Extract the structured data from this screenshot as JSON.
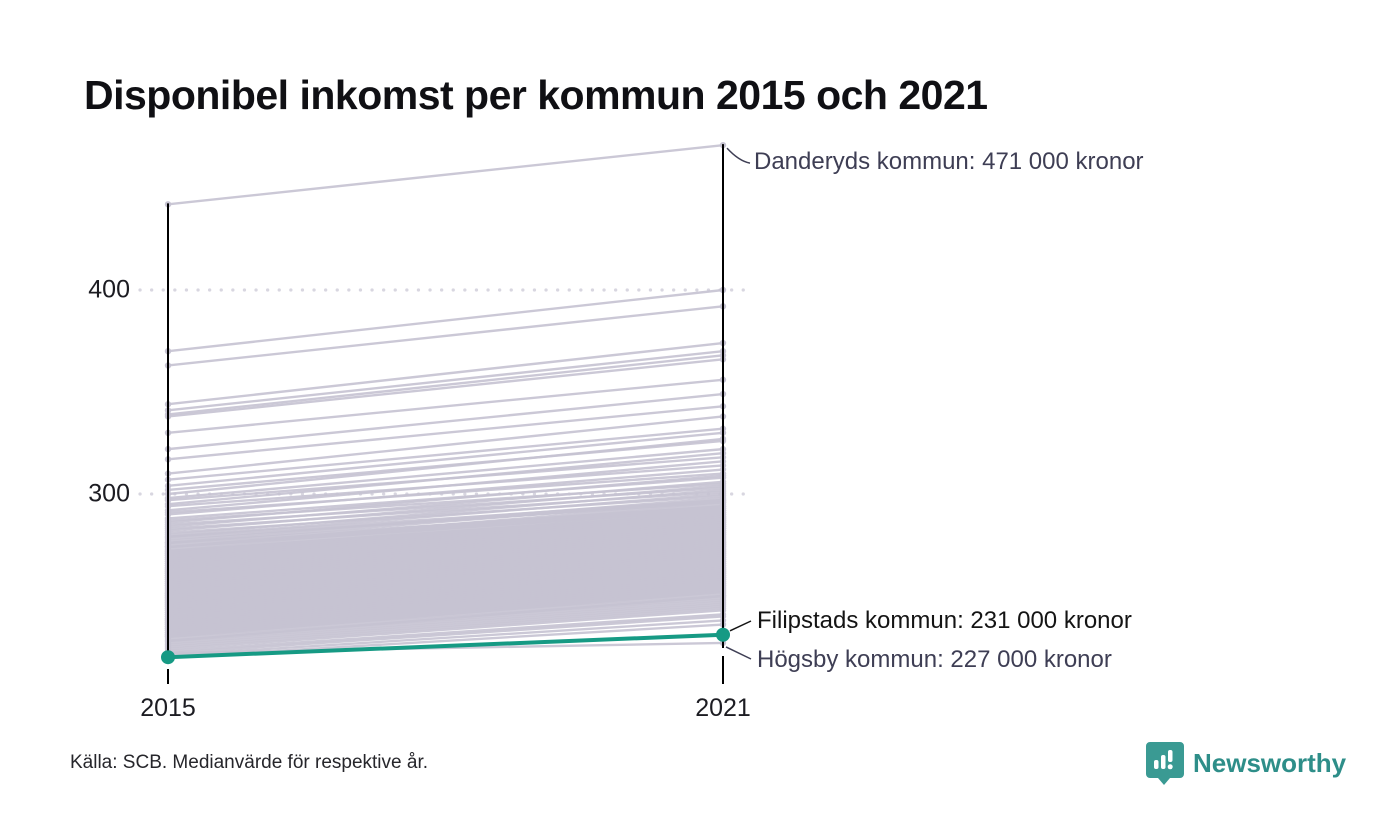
{
  "title": "Disponibel inkomst per kommun 2015 och 2021",
  "source": "Källa: SCB. Medianvärde för respektive år.",
  "brand": {
    "name": "Newsworthy",
    "badge_color": "#3a9a93",
    "text_color": "#2e8e89",
    "icon": "bar-chart-exclamation-badge-icon"
  },
  "colors": {
    "background_line": "#c6c3d2",
    "highlight": "#169a84",
    "axis": "#000000",
    "gridline": "#d8d6e0",
    "annotation_text": "#3e3e54",
    "annotation_text_highlight": "#141414"
  },
  "chart_data": {
    "type": "line",
    "subtype": "slope-chart",
    "x": [
      "2015",
      "2021"
    ],
    "yticks": [
      "400",
      "300"
    ],
    "ytick_values": [
      400,
      300
    ],
    "ylim": [
      215,
      480
    ],
    "unit": "tusen kronor (medianvärde)",
    "grid": "dotted horizontal at 300 and 400",
    "highlight": {
      "name": "Filipstads kommun",
      "values": [
        220,
        231
      ],
      "label": "Filipstads kommun: 231 000 kronor"
    },
    "annotations": [
      {
        "name": "Danderyds kommun",
        "values": [
          442,
          471
        ],
        "label": "Danderyds kommun: 471 000 kronor"
      },
      {
        "name": "Högsby kommun",
        "values": [
          222,
          227
        ],
        "label": "Högsby kommun: 227 000 kronor"
      }
    ],
    "background_series": [
      [
        370,
        400
      ],
      [
        363,
        392
      ],
      [
        344,
        374
      ],
      [
        341,
        370
      ],
      [
        339,
        368
      ],
      [
        338,
        366
      ],
      [
        330,
        356
      ],
      [
        322,
        349
      ],
      [
        317,
        343
      ],
      [
        310,
        338
      ],
      [
        307,
        332
      ],
      [
        304,
        330
      ],
      [
        302,
        326
      ],
      [
        300,
        327
      ],
      [
        298,
        322
      ],
      [
        297,
        318
      ],
      [
        295,
        320
      ],
      [
        294,
        314
      ],
      [
        292,
        316
      ],
      [
        291,
        310
      ],
      [
        290,
        312
      ],
      [
        288,
        308
      ],
      [
        287,
        305
      ],
      [
        286,
        309
      ],
      [
        285,
        303
      ],
      [
        284,
        306
      ],
      [
        283,
        301
      ],
      [
        282,
        304
      ],
      [
        281,
        299
      ],
      [
        280,
        302
      ],
      [
        279,
        297
      ],
      [
        279,
        300
      ],
      [
        278,
        296
      ],
      [
        277,
        298
      ],
      [
        276,
        294
      ],
      [
        276,
        297
      ],
      [
        275,
        293
      ],
      [
        274,
        296
      ],
      [
        274,
        292
      ],
      [
        273,
        295
      ],
      [
        272,
        291
      ],
      [
        272,
        294
      ],
      [
        271,
        290
      ],
      [
        271,
        293
      ],
      [
        270,
        289
      ],
      [
        270,
        292
      ],
      [
        269,
        288
      ],
      [
        269,
        291
      ],
      [
        268,
        287
      ],
      [
        268,
        290
      ],
      [
        267,
        286
      ],
      [
        267,
        289
      ],
      [
        266,
        285
      ],
      [
        266,
        288
      ],
      [
        265,
        284
      ],
      [
        265,
        287
      ],
      [
        264,
        283
      ],
      [
        264,
        286
      ],
      [
        263,
        282
      ],
      [
        263,
        285
      ],
      [
        262,
        281
      ],
      [
        262,
        284
      ],
      [
        261,
        280
      ],
      [
        261,
        283
      ],
      [
        260,
        279
      ],
      [
        260,
        282
      ],
      [
        259,
        278
      ],
      [
        259,
        281
      ],
      [
        258,
        277
      ],
      [
        258,
        280
      ],
      [
        257,
        276
      ],
      [
        257,
        279
      ],
      [
        256,
        275
      ],
      [
        256,
        278
      ],
      [
        255,
        274
      ],
      [
        255,
        277
      ],
      [
        254,
        273
      ],
      [
        254,
        276
      ],
      [
        253,
        272
      ],
      [
        253,
        275
      ],
      [
        252,
        271
      ],
      [
        252,
        274
      ],
      [
        251,
        270
      ],
      [
        251,
        273
      ],
      [
        250,
        269
      ],
      [
        250,
        272
      ],
      [
        249,
        268
      ],
      [
        249,
        271
      ],
      [
        248,
        267
      ],
      [
        248,
        270
      ],
      [
        247,
        266
      ],
      [
        247,
        269
      ],
      [
        246,
        265
      ],
      [
        246,
        268
      ],
      [
        245,
        264
      ],
      [
        245,
        267
      ],
      [
        244,
        263
      ],
      [
        244,
        266
      ],
      [
        243,
        262
      ],
      [
        243,
        265
      ],
      [
        242,
        261
      ],
      [
        242,
        264
      ],
      [
        241,
        260
      ],
      [
        241,
        263
      ],
      [
        240,
        259
      ],
      [
        240,
        262
      ],
      [
        239,
        258
      ],
      [
        239,
        261
      ],
      [
        238,
        257
      ],
      [
        238,
        260
      ],
      [
        237,
        256
      ],
      [
        237,
        259
      ],
      [
        236,
        255
      ],
      [
        236,
        258
      ],
      [
        235,
        254
      ],
      [
        235,
        257
      ],
      [
        234,
        253
      ],
      [
        234,
        256
      ],
      [
        233,
        252
      ],
      [
        233,
        255
      ],
      [
        232,
        251
      ],
      [
        232,
        254
      ],
      [
        231,
        250
      ],
      [
        231,
        253
      ],
      [
        230,
        249
      ],
      [
        230,
        252
      ],
      [
        229,
        248
      ],
      [
        228,
        250
      ],
      [
        228,
        247
      ],
      [
        227,
        246
      ],
      [
        226,
        245
      ],
      [
        225,
        244
      ],
      [
        224,
        243
      ],
      [
        223,
        241
      ],
      [
        222,
        240
      ],
      [
        221,
        238
      ],
      [
        220,
        236
      ]
    ]
  }
}
